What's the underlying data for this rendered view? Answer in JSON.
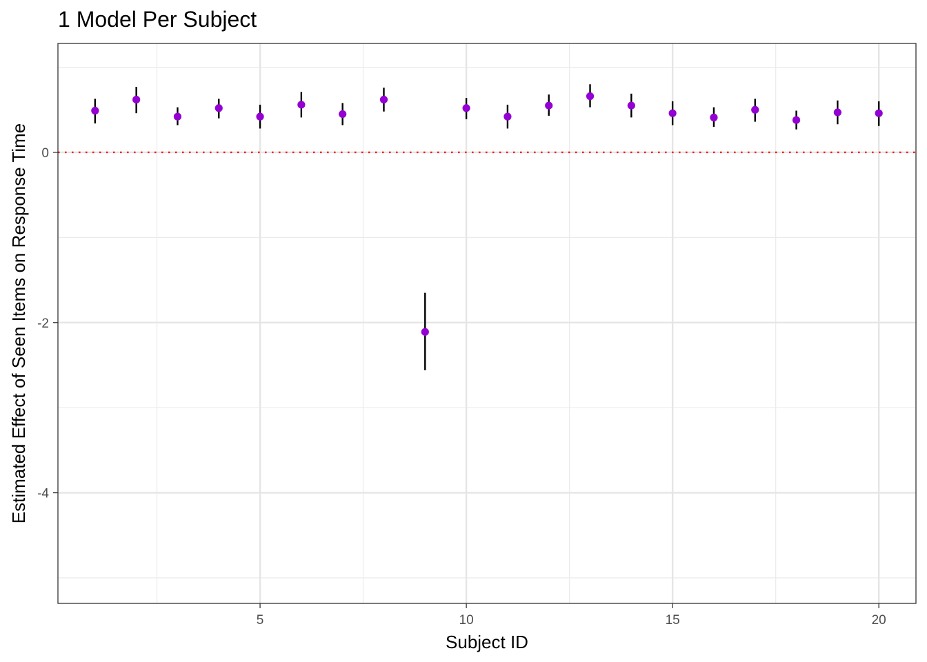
{
  "chart_data": {
    "type": "scatter",
    "title": "1 Model Per Subject",
    "xlabel": "Subject ID",
    "ylabel": "Estimated Effect of Seen Items on Response Time",
    "xlim": [
      0.1,
      20.9
    ],
    "ylim": [
      -5.3,
      1.28
    ],
    "x_ticks": [
      5,
      10,
      15,
      20
    ],
    "x_tick_labels": [
      "5",
      "10",
      "15",
      "20"
    ],
    "y_ticks": [
      0,
      -2,
      -4
    ],
    "y_tick_labels": [
      "0",
      "-2",
      "-4"
    ],
    "x_minor_gridlines": [
      2.5,
      7.5,
      12.5,
      17.5
    ],
    "y_minor_gridlines": [
      1,
      -1,
      -3,
      -5
    ],
    "grid": true,
    "reference_line": {
      "y": 0,
      "style": "dotted",
      "color": "#ff0000"
    },
    "point_color": "#9400d3",
    "errorbar_color": "#000000",
    "series": [
      {
        "x": [
          1,
          2,
          3,
          4,
          5,
          6,
          7,
          8,
          9,
          10,
          11,
          12,
          13,
          14,
          15,
          16,
          17,
          18,
          19,
          20
        ],
        "y": [
          0.49,
          0.62,
          0.42,
          0.52,
          0.42,
          0.56,
          0.45,
          0.62,
          -2.11,
          0.52,
          0.42,
          0.55,
          0.66,
          0.55,
          0.46,
          0.41,
          0.5,
          0.38,
          0.47,
          0.46
        ],
        "ymin": [
          0.34,
          0.46,
          0.32,
          0.4,
          0.28,
          0.41,
          0.32,
          0.48,
          -2.56,
          0.39,
          0.28,
          0.43,
          0.53,
          0.41,
          0.32,
          0.3,
          0.36,
          0.27,
          0.33,
          0.31
        ],
        "ymax": [
          0.63,
          0.77,
          0.53,
          0.63,
          0.56,
          0.71,
          0.58,
          0.76,
          -1.65,
          0.64,
          0.56,
          0.68,
          0.8,
          0.69,
          0.6,
          0.53,
          0.63,
          0.49,
          0.61,
          0.6
        ]
      }
    ]
  }
}
